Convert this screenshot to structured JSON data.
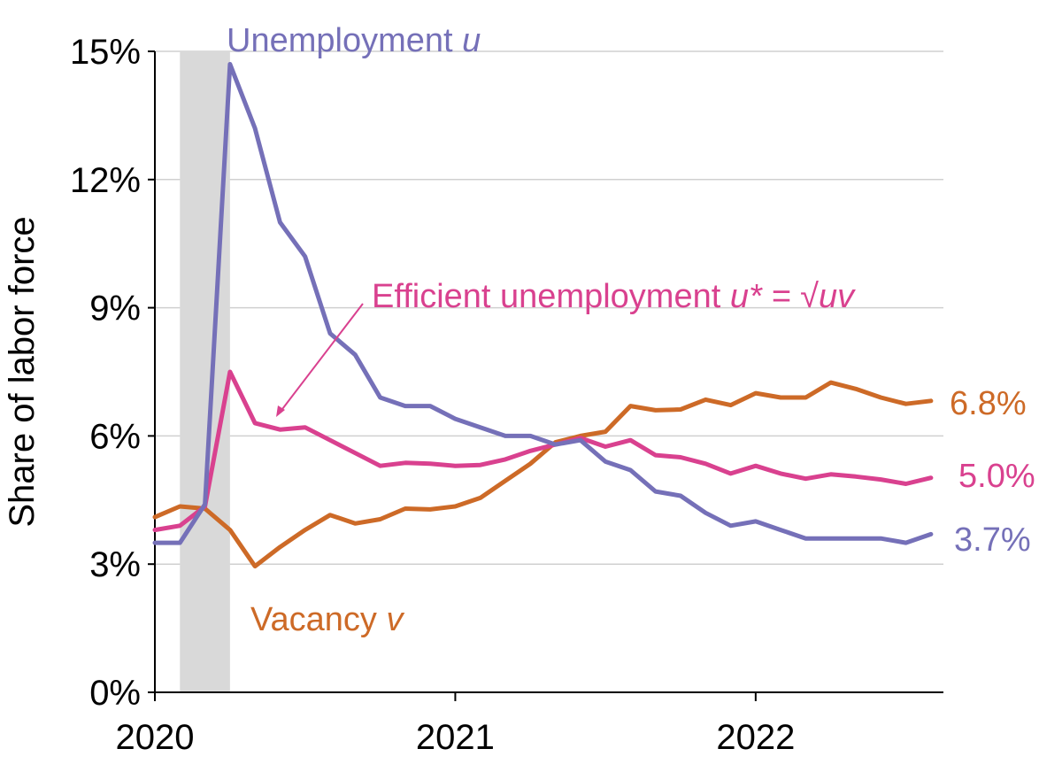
{
  "chart_data": {
    "type": "line",
    "ylabel": "Share of labor force",
    "xlabel": "",
    "ylim": [
      0,
      15
    ],
    "xlim": [
      2020.0,
      2022.625
    ],
    "y_ticks": [
      0,
      3,
      6,
      9,
      12,
      15
    ],
    "y_tick_labels": [
      "0%",
      "3%",
      "6%",
      "9%",
      "12%",
      "15%"
    ],
    "x_ticks": [
      2020,
      2021,
      2022
    ],
    "x_tick_labels": [
      "2020",
      "2021",
      "2022"
    ],
    "grid": "horizontal",
    "recession_shading": {
      "from": "2020-02",
      "to": "2020-04"
    },
    "x": [
      "2020-01",
      "2020-02",
      "2020-03",
      "2020-04",
      "2020-05",
      "2020-06",
      "2020-07",
      "2020-08",
      "2020-09",
      "2020-10",
      "2020-11",
      "2020-12",
      "2021-01",
      "2021-02",
      "2021-03",
      "2021-04",
      "2021-05",
      "2021-06",
      "2021-07",
      "2021-08",
      "2021-09",
      "2021-10",
      "2021-11",
      "2021-12",
      "2022-01",
      "2022-02",
      "2022-03",
      "2022-04",
      "2022-05",
      "2022-06",
      "2022-07",
      "2022-08"
    ],
    "series": [
      {
        "name": "Unemployment",
        "symbol": "u",
        "color": "#7570b8",
        "end_label": "3.7%",
        "values": [
          3.5,
          3.5,
          4.4,
          14.7,
          13.2,
          11.0,
          10.2,
          8.4,
          7.9,
          6.9,
          6.7,
          6.7,
          6.4,
          6.2,
          6.0,
          6.0,
          5.8,
          5.9,
          5.4,
          5.2,
          4.7,
          4.6,
          4.2,
          3.9,
          4.0,
          3.8,
          3.6,
          3.6,
          3.6,
          3.6,
          3.5,
          3.7
        ]
      },
      {
        "name": "Efficient unemployment",
        "symbol": "u* = √uv",
        "color": "#d9418f",
        "end_label": "5.0%",
        "values": [
          3.8,
          3.9,
          4.35,
          7.5,
          6.3,
          6.15,
          6.2,
          5.9,
          5.6,
          5.3,
          5.37,
          5.35,
          5.3,
          5.32,
          5.45,
          5.65,
          5.8,
          5.95,
          5.75,
          5.9,
          5.55,
          5.5,
          5.35,
          5.12,
          5.3,
          5.12,
          5.0,
          5.1,
          5.05,
          4.98,
          4.88,
          5.02
        ]
      },
      {
        "name": "Vacancy",
        "symbol": "v",
        "color": "#cd6a27",
        "end_label": "6.8%",
        "values": [
          4.1,
          4.35,
          4.3,
          3.8,
          2.95,
          3.4,
          3.8,
          4.15,
          3.95,
          4.05,
          4.3,
          4.28,
          4.35,
          4.55,
          4.95,
          5.35,
          5.85,
          6.0,
          6.1,
          6.7,
          6.6,
          6.62,
          6.85,
          6.72,
          7.0,
          6.9,
          6.9,
          7.25,
          7.1,
          6.9,
          6.75,
          6.82
        ]
      }
    ]
  },
  "annotations": {
    "unemployment": {
      "name": "Unemployment",
      "symbol": "u"
    },
    "efficient": {
      "name": "Efficient unemployment",
      "symbol": "u* = √uv"
    },
    "vacancy": {
      "name": "Vacancy",
      "symbol": "v"
    }
  }
}
